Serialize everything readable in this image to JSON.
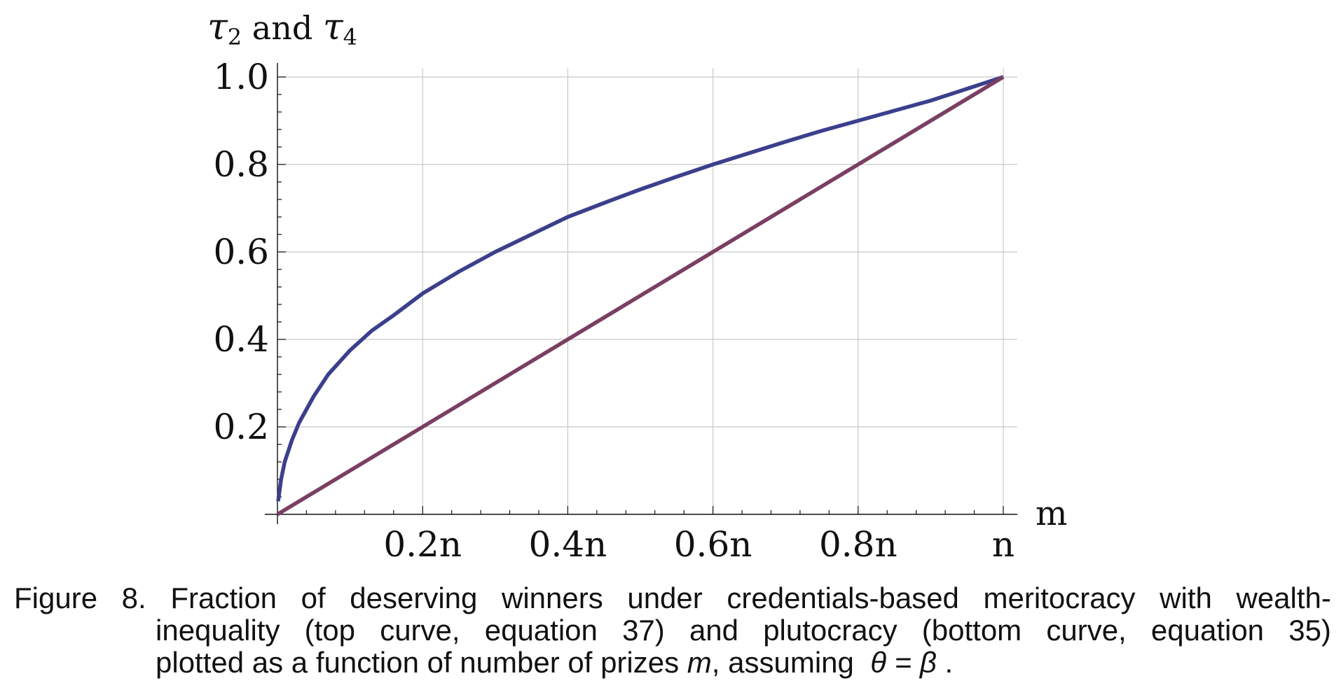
{
  "chart_data": {
    "type": "line",
    "ylabel": {
      "parts": [
        {
          "text": "τ",
          "kind": "sym"
        },
        {
          "text": "2",
          "kind": "sub"
        },
        {
          "text": " and ",
          "kind": "text"
        },
        {
          "text": "τ",
          "kind": "sym"
        },
        {
          "text": "4",
          "kind": "sub"
        }
      ]
    },
    "xlabel": "m",
    "xlim": [
      0,
      1
    ],
    "ylim": [
      0,
      1
    ],
    "grid": true,
    "x_ticks": [
      {
        "value": 0.2,
        "label": "0.2n"
      },
      {
        "value": 0.4,
        "label": "0.4n"
      },
      {
        "value": 0.6,
        "label": "0.6n"
      },
      {
        "value": 0.8,
        "label": "0.8n"
      },
      {
        "value": 1.0,
        "label": "n"
      }
    ],
    "y_ticks": [
      {
        "value": 0.2,
        "label": "0.2"
      },
      {
        "value": 0.4,
        "label": "0.4"
      },
      {
        "value": 0.6,
        "label": "0.6"
      },
      {
        "value": 0.8,
        "label": "0.8"
      },
      {
        "value": 1.0,
        "label": "1.0"
      }
    ],
    "series": [
      {
        "color": "#3b3f8c",
        "x": [
          0.001,
          0.005,
          0.01,
          0.02,
          0.03,
          0.05,
          0.07,
          0.1,
          0.13,
          0.16,
          0.2,
          0.25,
          0.3,
          0.35,
          0.4,
          0.45,
          0.5,
          0.55,
          0.6,
          0.65,
          0.7,
          0.75,
          0.8,
          0.85,
          0.9,
          0.95,
          1.0
        ],
        "values": [
          0.03,
          0.08,
          0.12,
          0.17,
          0.21,
          0.27,
          0.32,
          0.375,
          0.42,
          0.455,
          0.505,
          0.555,
          0.6,
          0.64,
          0.68,
          0.712,
          0.743,
          0.772,
          0.8,
          0.826,
          0.852,
          0.877,
          0.9,
          0.923,
          0.946,
          0.973,
          1.0
        ]
      },
      {
        "color": "#7a3f62",
        "x": [
          0,
          1
        ],
        "values": [
          0,
          1
        ]
      }
    ]
  },
  "caption": {
    "line1_words": [
      "Figure",
      "8.",
      "Fraction",
      "of",
      "deserving",
      "winners",
      "under",
      "credentials-based",
      "meritocracy",
      "with",
      "wealth-"
    ],
    "line2_words": [
      "inequality",
      "(top",
      "curve,",
      "equation",
      "37)",
      "and",
      "plutocracy",
      "(bottom",
      "curve,",
      "equation",
      "35)"
    ],
    "line3_before": "plotted as a function of number of prizes ",
    "line3_var": "m",
    "line3_mid": ", assuming ",
    "line3_eq": "θ = β",
    "line3_end": " ."
  }
}
